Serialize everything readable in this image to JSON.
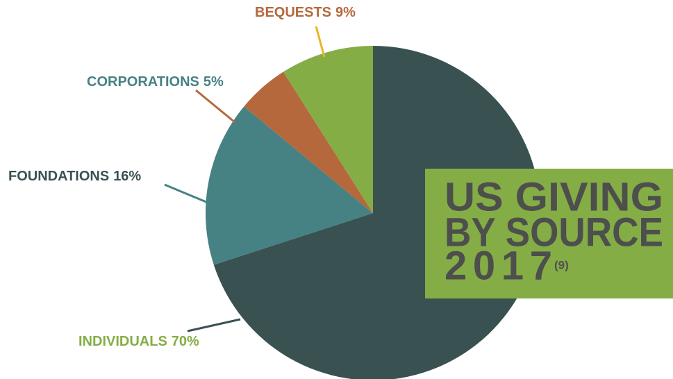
{
  "chart_data": {
    "type": "pie",
    "title_lines": [
      "US GIVING",
      "BY SOURCE",
      "2017"
    ],
    "note": "(9)",
    "categories": [
      "INDIVIDUALS",
      "FOUNDATIONS",
      "CORPORATIONS",
      "BEQUESTS"
    ],
    "values": [
      70,
      16,
      5,
      9
    ],
    "value_labels": [
      "70%",
      "16%",
      "5%",
      "9%"
    ],
    "colors": [
      "#3a5152",
      "#468283",
      "#b5683b",
      "#85ad46"
    ]
  }
}
